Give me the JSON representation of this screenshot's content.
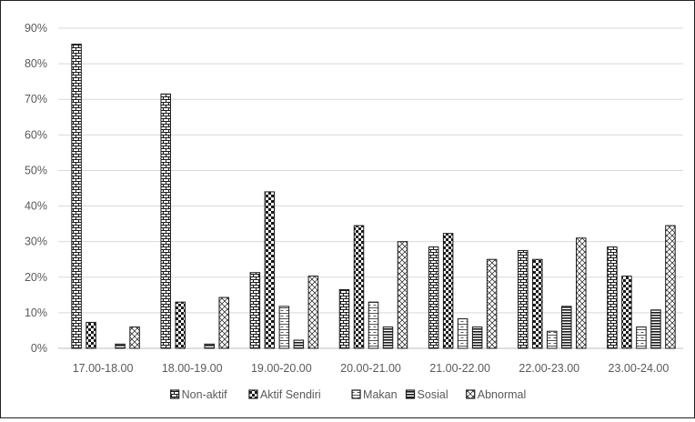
{
  "chart_data": {
    "type": "bar",
    "categories": [
      "17.00-18.00",
      "18.00-19.00",
      "19.00-20.00",
      "20.00-21.00",
      "21.00-22.00",
      "22.00-23.00",
      "23.00-24.00"
    ],
    "series": [
      {
        "name": "Non-aktif",
        "values": [
          85.5,
          71.5,
          21.3,
          16.5,
          28.5,
          27.5,
          28.5
        ],
        "pattern": "brick"
      },
      {
        "name": "Aktif Sendiri",
        "values": [
          7.3,
          13.0,
          44.0,
          34.5,
          32.3,
          25.0,
          20.3
        ],
        "pattern": "checker"
      },
      {
        "name": "Makan",
        "values": [
          0,
          0,
          11.8,
          13.0,
          8.3,
          4.8,
          6.0
        ],
        "pattern": "dash"
      },
      {
        "name": "Sosial",
        "values": [
          1.2,
          1.2,
          2.3,
          6.0,
          6.0,
          11.8,
          10.8
        ],
        "pattern": "hlines"
      },
      {
        "name": "Abnormal",
        "values": [
          6.0,
          14.3,
          20.3,
          30.0,
          25.0,
          31.0,
          34.5
        ],
        "pattern": "diagonal"
      }
    ],
    "yticks": [
      "0%",
      "10%",
      "20%",
      "30%",
      "40%",
      "50%",
      "60%",
      "70%",
      "80%",
      "90%"
    ],
    "ylim": [
      0,
      90
    ],
    "grid": true,
    "legend_position": "bottom",
    "colors": {
      "bar_stroke": "#1a1a1a",
      "grid": "#d9d9d9",
      "text": "#595959",
      "frame": "#222222"
    }
  }
}
